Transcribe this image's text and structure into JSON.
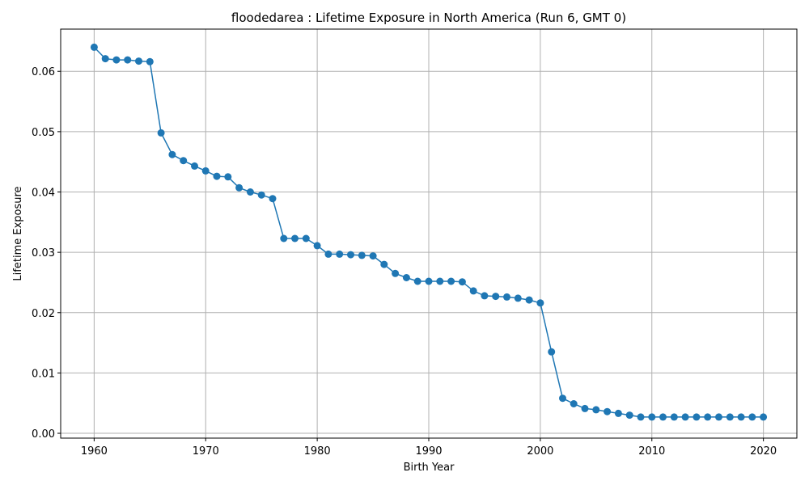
{
  "chart_data": {
    "type": "line",
    "title": "floodedarea : Lifetime Exposure in North America (Run 6, GMT 0)",
    "xlabel": "Birth Year",
    "ylabel": "Lifetime Exposure",
    "xlim": [
      1957,
      2023
    ],
    "ylim": [
      -0.0008,
      0.067
    ],
    "xticks": [
      "1960",
      "1970",
      "1980",
      "1990",
      "2000",
      "2010",
      "2020"
    ],
    "yticks": [
      "0.00",
      "0.01",
      "0.02",
      "0.03",
      "0.04",
      "0.05",
      "0.06"
    ],
    "grid": true,
    "color": "#1f77b4",
    "x": [
      1960,
      1961,
      1962,
      1963,
      1964,
      1965,
      1966,
      1967,
      1968,
      1969,
      1970,
      1971,
      1972,
      1973,
      1974,
      1975,
      1976,
      1977,
      1978,
      1979,
      1980,
      1981,
      1982,
      1983,
      1984,
      1985,
      1986,
      1987,
      1988,
      1989,
      1990,
      1991,
      1992,
      1993,
      1994,
      1995,
      1996,
      1997,
      1998,
      1999,
      2000,
      2001,
      2002,
      2003,
      2004,
      2005,
      2006,
      2007,
      2008,
      2009,
      2010,
      2011,
      2012,
      2013,
      2014,
      2015,
      2016,
      2017,
      2018,
      2019,
      2020
    ],
    "y": [
      0.064,
      0.0621,
      0.0619,
      0.0619,
      0.0617,
      0.0616,
      0.0498,
      0.0462,
      0.0452,
      0.0443,
      0.0435,
      0.0426,
      0.0425,
      0.0407,
      0.04,
      0.0395,
      0.0389,
      0.0323,
      0.0323,
      0.0323,
      0.0311,
      0.0297,
      0.0297,
      0.0296,
      0.0295,
      0.0294,
      0.028,
      0.0265,
      0.0258,
      0.0252,
      0.0252,
      0.0252,
      0.0252,
      0.0251,
      0.0236,
      0.0228,
      0.0227,
      0.0226,
      0.0224,
      0.0221,
      0.0216,
      0.0135,
      0.0058,
      0.0049,
      0.0041,
      0.0039,
      0.0036,
      0.0033,
      0.003,
      0.0027,
      0.0027,
      0.0027,
      0.0027,
      0.0027,
      0.0027,
      0.0027,
      0.0027,
      0.0027,
      0.0027,
      0.0027,
      0.0027
    ]
  }
}
